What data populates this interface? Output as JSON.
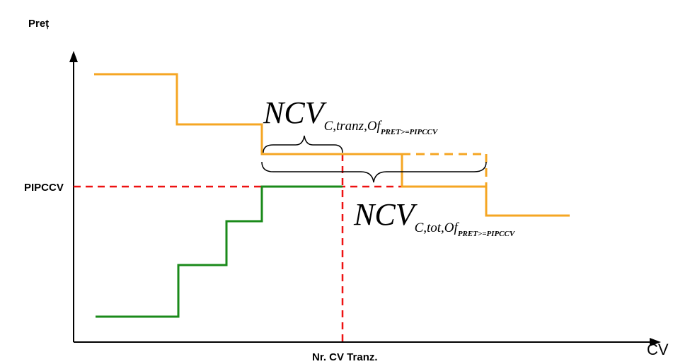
{
  "labels": {
    "y_axis": "Preț",
    "x_axis": "CV",
    "price_level": "PIPCCV",
    "transaction_quantity": "Nr. CV Tranz."
  },
  "annotations": {
    "tranz": {
      "main": "NCV",
      "sub": "C,tranz,Of",
      "subsub": "PRET>=PIPCCV"
    },
    "tot": {
      "main": "NCV",
      "sub": "C,tot,Of",
      "subsub": "PRET>=PIPCCV"
    }
  },
  "colors": {
    "offer_curve": "#f5a623",
    "demand_curve": "#1a8a1a",
    "reference_lines": "#ee1111",
    "axes": "#000000"
  }
}
